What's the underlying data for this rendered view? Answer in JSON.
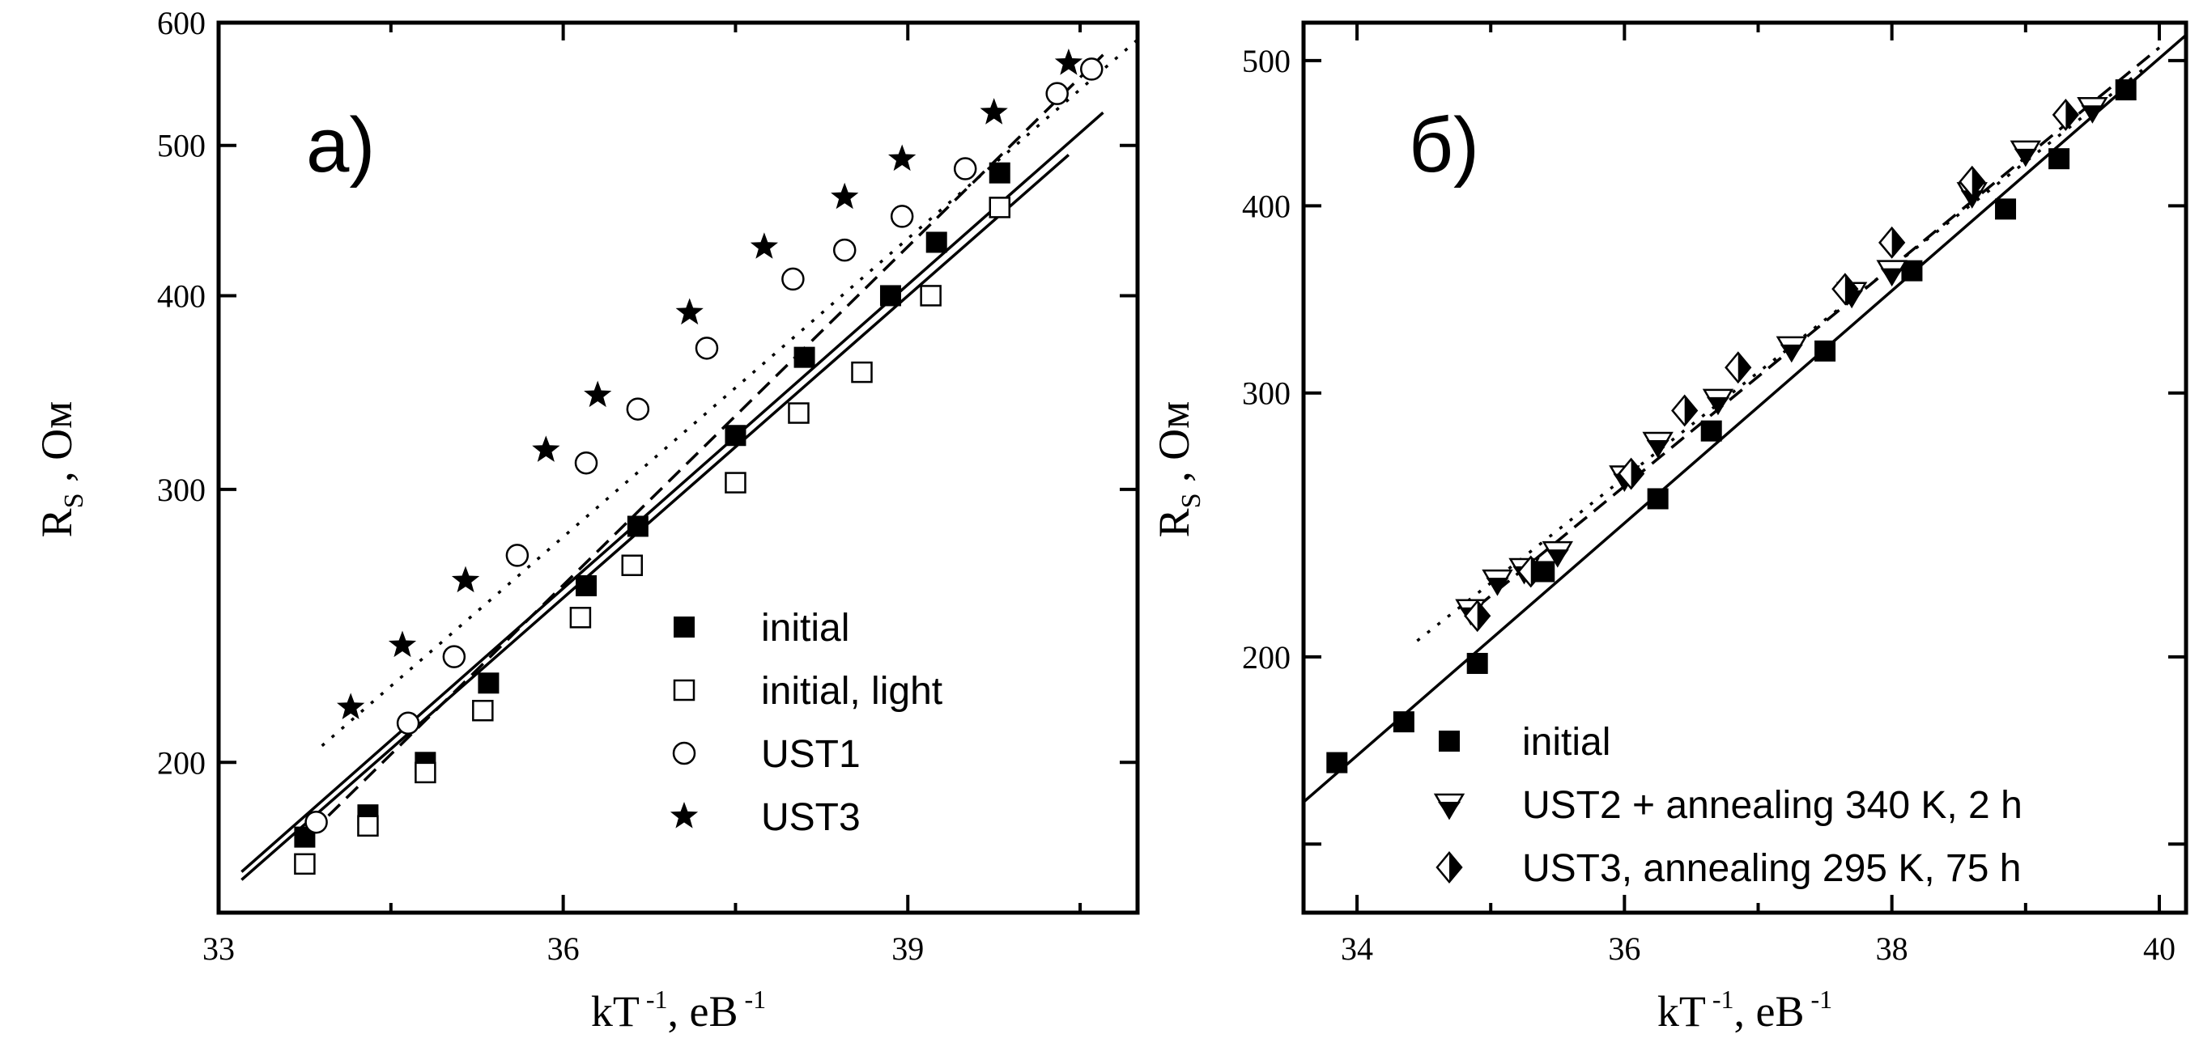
{
  "chart_data": [
    {
      "type": "scatter",
      "panel_label": "а)",
      "xlabel": {
        "main": "kT",
        "exp1": "-1",
        "sep": ",  ",
        "unit": "eB",
        "exp2": "-1"
      },
      "ylabel": {
        "main": "R",
        "sub": "S",
        "rest": " ,  Ом"
      },
      "xlim": [
        33,
        41
      ],
      "ylim": [
        160,
        600
      ],
      "yscale": "log",
      "x_ticks": [
        33,
        36,
        39
      ],
      "x_tick_labels": [
        "33",
        "36",
        "39"
      ],
      "y_ticks": [
        200,
        300,
        400,
        500,
        600
      ],
      "y_tick_labels": [
        "200",
        "300",
        "400",
        "500",
        "600"
      ],
      "legend_position": "bottom-right",
      "series": [
        {
          "name": "initial",
          "marker": "filled-square",
          "points": [
            [
              33.75,
              179
            ],
            [
              34.3,
              185
            ],
            [
              34.8,
              200
            ],
            [
              35.35,
              225
            ],
            [
              36.2,
              260
            ],
            [
              36.65,
              284
            ],
            [
              37.5,
              325
            ],
            [
              38.1,
              365
            ],
            [
              38.85,
              400
            ],
            [
              39.25,
              433
            ],
            [
              39.8,
              480
            ]
          ],
          "fit": {
            "style": "solid",
            "x": [
              33.2,
              40.7
            ],
            "y": [
              170,
              525
            ]
          }
        },
        {
          "name": "initial, light",
          "marker": "open-square",
          "points": [
            [
              33.75,
              172
            ],
            [
              34.3,
              182
            ],
            [
              34.8,
              197
            ],
            [
              35.3,
              216
            ],
            [
              36.15,
              248
            ],
            [
              36.6,
              268
            ],
            [
              37.5,
              303
            ],
            [
              38.05,
              336
            ],
            [
              38.6,
              357
            ],
            [
              39.2,
              400
            ],
            [
              39.8,
              456
            ]
          ],
          "fit": {
            "style": "solid",
            "x": [
              33.2,
              40.4
            ],
            "y": [
              168,
              493
            ]
          }
        },
        {
          "name": "UST1",
          "marker": "open-circle",
          "points": [
            [
              33.85,
              183
            ],
            [
              34.65,
              212
            ],
            [
              35.05,
              234
            ],
            [
              35.6,
              272
            ],
            [
              36.2,
              312
            ],
            [
              36.65,
              338
            ],
            [
              37.25,
              370
            ],
            [
              38,
              410
            ],
            [
              38.45,
              428
            ],
            [
              38.95,
              450
            ],
            [
              39.5,
              483
            ],
            [
              40.3,
              540
            ],
            [
              40.6,
              560
            ]
          ],
          "fit": {
            "style": "dashed",
            "x": [
              33.8,
              40.7
            ],
            "y": [
              180,
              572
            ]
          }
        },
        {
          "name": "UST3",
          "marker": "star",
          "points": [
            [
              34.15,
              217
            ],
            [
              34.6,
              238
            ],
            [
              35.15,
              262
            ],
            [
              35.85,
              318
            ],
            [
              36.3,
              345
            ],
            [
              37.1,
              390
            ],
            [
              37.75,
              430
            ],
            [
              38.45,
              463
            ],
            [
              38.95,
              490
            ],
            [
              39.75,
              525
            ],
            [
              40.4,
              565
            ]
          ],
          "fit": {
            "style": "dotted",
            "x": [
              33.9,
              41
            ],
            "y": [
              205,
              585
            ]
          }
        }
      ]
    },
    {
      "type": "scatter",
      "panel_label": "б)",
      "xlabel": {
        "main": "kT",
        "exp1": "-1",
        "sep": ",  ",
        "unit": "eB",
        "exp2": "-1"
      },
      "ylabel": {
        "main": "R",
        "sub": "S",
        "rest": " ,  Ом"
      },
      "xlim": [
        33.6,
        40.2
      ],
      "ylim": [
        135,
        530
      ],
      "yscale": "log",
      "x_ticks": [
        34,
        36,
        38,
        40
      ],
      "x_tick_labels": [
        "34",
        "36",
        "38",
        "40"
      ],
      "y_ticks": [
        200,
        300,
        400,
        500
      ],
      "y_tick_labels": [
        "200",
        "300",
        "400",
        "500"
      ],
      "legend_position": "bottom-right",
      "series": [
        {
          "name": "initial",
          "marker": "filled-square",
          "points": [
            [
              33.85,
              170
            ],
            [
              34.35,
              181
            ],
            [
              34.9,
              198
            ],
            [
              35.4,
              228
            ],
            [
              36.25,
              255
            ],
            [
              36.65,
              283
            ],
            [
              37.5,
              320
            ],
            [
              38.15,
              362
            ],
            [
              38.85,
              398
            ],
            [
              39.25,
              430
            ],
            [
              39.75,
              478
            ]
          ],
          "fit": {
            "style": "solid",
            "x": [
              33.6,
              40.2
            ],
            "y": [
              160,
              520
            ]
          }
        },
        {
          "name": "UST2 + annealing 340 K, 2 h",
          "marker": "half-triangle-down",
          "points": [
            [
              34.85,
              215
            ],
            [
              35.05,
              225
            ],
            [
              35.25,
              229
            ],
            [
              35.5,
              235
            ],
            [
              36.0,
              264
            ],
            [
              36.25,
              278
            ],
            [
              36.7,
              297
            ],
            [
              37.25,
              322
            ],
            [
              37.7,
              350
            ],
            [
              38.0,
              362
            ],
            [
              38.6,
              408
            ],
            [
              39.0,
              435
            ],
            [
              39.5,
              465
            ]
          ],
          "fit": {
            "style": "dashed",
            "x": [
              34.9,
              40
            ],
            "y": [
              216,
              510
            ]
          }
        },
        {
          "name": "UST3, annealing 295 K, 75 h",
          "marker": "half-diamond",
          "points": [
            [
              34.9,
              213
            ],
            [
              35.3,
              228
            ],
            [
              36.05,
              265
            ],
            [
              36.45,
              292
            ],
            [
              36.85,
              312
            ],
            [
              37.65,
              352
            ],
            [
              38.0,
              378
            ],
            [
              38.6,
              415
            ],
            [
              39.3,
              460
            ]
          ],
          "fit": {
            "style": "dotted",
            "x": [
              34.45,
              39.9
            ],
            "y": [
              205,
              495
            ]
          }
        }
      ]
    }
  ]
}
